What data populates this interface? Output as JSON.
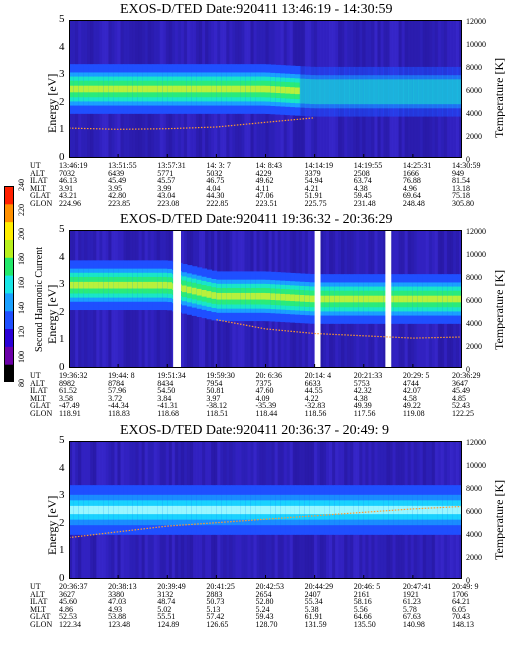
{
  "panels": [
    {
      "title": "EXOS-D/TED   Date:920411   13:46:19 - 14:30:59",
      "ylabel": "Energy [eV]",
      "ylabel_right": "Temperature [K]",
      "y_ticks": [
        "0",
        "1",
        "2",
        "3",
        "4",
        "5"
      ],
      "right_ticks": [
        "0",
        "2000",
        "4000",
        "6000",
        "8000",
        "10000",
        "12000"
      ],
      "row_labels": [
        "UT",
        "ALT",
        "ILAT",
        "MLT",
        "GLAT",
        "GLON"
      ],
      "columns": [
        [
          "13:46:19",
          "7032",
          "46.13",
          "3.91",
          "43.21",
          "224.96"
        ],
        [
          "13:51:55",
          "6439",
          "45.49",
          "3.95",
          "42.80",
          "223.85"
        ],
        [
          "13:57:31",
          "5771",
          "45.57",
          "3.99",
          "43.04",
          "223.08"
        ],
        [
          "14: 3: 7",
          "5032",
          "46.75",
          "4.04",
          "44.30",
          "222.85"
        ],
        [
          "14: 8:43",
          "4229",
          "49.62",
          "4.11",
          "47.06",
          "223.51"
        ],
        [
          "14:14:19",
          "3379",
          "54.94",
          "4.21",
          "51.91",
          "225.75"
        ],
        [
          "14:19:55",
          "2508",
          "63.74",
          "4.38",
          "59.45",
          "231.48"
        ],
        [
          "14:25:31",
          "1666",
          "76.88",
          "4.96",
          "69.64",
          "248.48"
        ],
        [
          "14:30:59",
          "949",
          "81.54",
          "13.18",
          "75.18",
          "305.80"
        ]
      ]
    },
    {
      "title": "EXOS-D/TED   Date:920411   19:36:32 - 20:36:29",
      "ylabel": "Energy [eV]",
      "ylabel_right": "Temperature [K]",
      "y_ticks": [
        "0",
        "1",
        "2",
        "3",
        "4",
        "5"
      ],
      "right_ticks": [
        "0",
        "2000",
        "4000",
        "6000",
        "8000",
        "10000",
        "12000"
      ],
      "row_labels": [
        "UT",
        "ALT",
        "ILAT",
        "MLT",
        "GLAT",
        "GLON"
      ],
      "columns": [
        [
          "19:36:32",
          "8982",
          "61.52",
          "3.58",
          "-47.49",
          "118.91"
        ],
        [
          "19:44: 8",
          "8784",
          "57.96",
          "3.72",
          "-44.34",
          "118.83"
        ],
        [
          "19:51:34",
          "8434",
          "54.50",
          "3.84",
          "-41.31",
          "118.68"
        ],
        [
          "19:59:30",
          "7954",
          "50.81",
          "3.97",
          "-38.12",
          "118.51"
        ],
        [
          "20: 6:36",
          "7375",
          "47.60",
          "4.09",
          "-35.39",
          "118.44"
        ],
        [
          "20:14: 4",
          "6633",
          "44.55",
          "4.22",
          "-32.83",
          "118.56"
        ],
        [
          "20:21:33",
          "5753",
          "42.32",
          "4.38",
          "49.39",
          "117.56"
        ],
        [
          "20:29: 5",
          "4744",
          "42.07",
          "4.58",
          "49.22",
          "119.08"
        ],
        [
          "20:36:29",
          "3647",
          "45.49",
          "4.85",
          "52.43",
          "122.25"
        ]
      ]
    },
    {
      "title": "EXOS-D/TED   Date:920411   20:36:37 - 20:49: 9",
      "ylabel": "Energy [eV]",
      "ylabel_right": "Temperature [K]",
      "y_ticks": [
        "0",
        "1",
        "2",
        "3",
        "4",
        "5"
      ],
      "right_ticks": [
        "0",
        "2000",
        "4000",
        "6000",
        "8000",
        "10000",
        "12000"
      ],
      "row_labels": [
        "UT",
        "ALT",
        "ILAT",
        "MLT",
        "GLAT",
        "GLON"
      ],
      "columns": [
        [
          "20:36:37",
          "3627",
          "45.60",
          "4.86",
          "52.53",
          "122.34"
        ],
        [
          "20:38:13",
          "3380",
          "47.03",
          "4.93",
          "53.88",
          "123.48"
        ],
        [
          "20:39:49",
          "3132",
          "48.74",
          "5.02",
          "55.51",
          "124.89"
        ],
        [
          "20:41:25",
          "2883",
          "50.73",
          "5.13",
          "57.42",
          "126.65"
        ],
        [
          "20:42:53",
          "2654",
          "52.80",
          "5.24",
          "59.43",
          "128.70"
        ],
        [
          "20:44:29",
          "2407",
          "55.34",
          "5.38",
          "61.91",
          "131.59"
        ],
        [
          "20:46: 5",
          "2161",
          "58.16",
          "5.56",
          "64.66",
          "135.50"
        ],
        [
          "20:47:41",
          "1921",
          "61.23",
          "5.78",
          "67.63",
          "140.98"
        ],
        [
          "20:49: 9",
          "1706",
          "64.21",
          "6.05",
          "70.43",
          "148.13"
        ]
      ]
    }
  ],
  "colorbar": {
    "label": "Second Harmonic Current",
    "ticks": [
      "80",
      "100",
      "120",
      "140",
      "160",
      "180",
      "200",
      "220",
      "240"
    ],
    "colors": [
      "#000000",
      "#6b00a8",
      "#2a00d6",
      "#1f4fff",
      "#1aa0ff",
      "#19e6e6",
      "#22e86a",
      "#b8f01c",
      "#ffee00",
      "#ff9000",
      "#ff2000"
    ]
  },
  "chart_data": [
    {
      "type": "heatmap",
      "title": "EXOS-D/TED   Date:920411   13:46:19 - 14:30:59",
      "xlabel": "",
      "ylabel": "Energy [eV]",
      "ylabel_right": "Temperature [K]",
      "ylim": [
        0,
        5
      ],
      "ylim_right": [
        0,
        12000
      ],
      "x": [
        "13:46:19",
        "13:51:55",
        "13:57:31",
        "14: 3: 7",
        "14: 8:43",
        "14:14:19",
        "14:19:55",
        "14:25:31",
        "14:30:59"
      ],
      "band_center_eV": [
        2.5,
        2.5,
        2.5,
        2.5,
        2.5,
        2.4,
        2.4,
        2.4,
        2.4
      ],
      "temperature_K": [
        2600,
        2500,
        2550,
        2700,
        3100,
        3500,
        null,
        null,
        null
      ]
    },
    {
      "type": "heatmap",
      "title": "EXOS-D/TED   Date:920411   19:36:32 - 20:36:29",
      "xlabel": "",
      "ylabel": "Energy [eV]",
      "ylabel_right": "Temperature [K]",
      "ylim": [
        0,
        5
      ],
      "ylim_right": [
        0,
        12000
      ],
      "x": [
        "19:36:32",
        "19:44: 8",
        "19:51:34",
        "19:59:30",
        "20: 6:36",
        "20:14: 4",
        "20:21:33",
        "20:29: 5",
        "20:36:29"
      ],
      "band_center_eV": [
        3.0,
        3.0,
        3.0,
        2.6,
        2.6,
        2.5,
        2.5,
        2.5,
        2.5
      ],
      "temperature_K": [
        null,
        null,
        null,
        4200,
        3400,
        3000,
        2800,
        2600,
        2700
      ]
    },
    {
      "type": "heatmap",
      "title": "EXOS-D/TED   Date:920411   20:36:37 - 20:49: 9",
      "xlabel": "",
      "ylabel": "Energy [eV]",
      "ylabel_right": "Temperature [K]",
      "ylim": [
        0,
        5
      ],
      "ylim_right": [
        0,
        12000
      ],
      "x": [
        "20:36:37",
        "20:38:13",
        "20:39:49",
        "20:41:25",
        "20:42:53",
        "20:44:29",
        "20:46: 5",
        "20:47:41",
        "20:49: 9"
      ],
      "band_center_eV": [
        2.5,
        2.5,
        2.5,
        2.5,
        2.5,
        2.5,
        2.5,
        2.5,
        2.5
      ],
      "temperature_K": [
        3600,
        4100,
        4600,
        4900,
        5200,
        5500,
        5800,
        6100,
        6300
      ]
    }
  ]
}
